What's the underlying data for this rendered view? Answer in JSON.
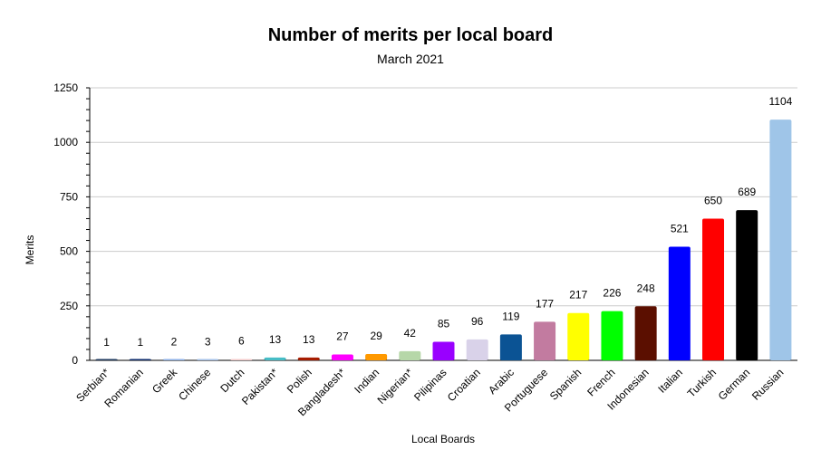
{
  "chart_data": {
    "type": "bar",
    "title": "Number of merits per local board",
    "subtitle": "March 2021",
    "xlabel": "Local Boards",
    "ylabel": "Merits",
    "ylim": [
      0,
      1250
    ],
    "yticks": [
      0,
      250,
      500,
      750,
      1000,
      1250
    ],
    "grid": true,
    "categories": [
      "Serbian*",
      "Romanian",
      "Greek",
      "Chinese",
      "Dutch",
      "Pakistan*",
      "Polish",
      "Bangladesh*",
      "Indian",
      "Nigerian*",
      "Pilipinas",
      "Croatian",
      "Arabic",
      "Portuguese",
      "Spanish",
      "French",
      "Indonesian",
      "Italian",
      "Turkish",
      "German",
      "Russian"
    ],
    "values": [
      1,
      1,
      2,
      3,
      6,
      13,
      13,
      27,
      29,
      42,
      85,
      96,
      119,
      177,
      217,
      226,
      248,
      521,
      650,
      689,
      1104
    ],
    "colors": [
      "#1f3a5f",
      "#0b2a6b",
      "#8fb2e8",
      "#a7c3ea",
      "#f4cccc",
      "#46bdc6",
      "#a61c00",
      "#ff00ff",
      "#ff9900",
      "#b6d7a8",
      "#9900ff",
      "#d9d2e9",
      "#0b5394",
      "#c27ba0",
      "#ffff00",
      "#00ff00",
      "#5b0f00",
      "#0000ff",
      "#ff0000",
      "#000000",
      "#9fc5e8"
    ]
  }
}
